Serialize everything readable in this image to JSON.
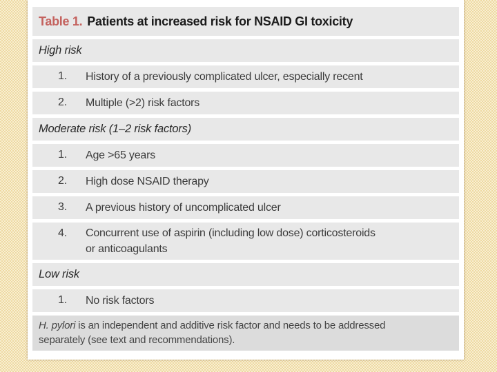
{
  "colors": {
    "background_tan_light": "#f8efd3",
    "background_tan_dark": "#eed9a1",
    "card_white": "#ffffff",
    "row_gray": "#e8e8e8",
    "footnote_gray": "#dcdcdc",
    "title_accent_red": "#c4625e",
    "body_text": "#3c3c3c"
  },
  "table": {
    "title": {
      "label": "Table 1.",
      "text": "Patients at increased risk for NSAID GI toxicity"
    },
    "sections": [
      {
        "header": "High risk",
        "items": [
          {
            "num": "1.",
            "text": "History of a previously complicated ulcer, especially recent"
          },
          {
            "num": "2.",
            "text": "Multiple (>2) risk factors"
          }
        ]
      },
      {
        "header": "Moderate risk (1–2 risk factors)",
        "items": [
          {
            "num": "1.",
            "text": "Age >65 years"
          },
          {
            "num": "2.",
            "text": "High dose NSAID therapy"
          },
          {
            "num": "3.",
            "text": "A previous history of uncomplicated ulcer"
          },
          {
            "num": "4.",
            "text": "Concurrent use of aspirin (including low dose) corticosteroids\nor anticoagulants"
          }
        ]
      },
      {
        "header": "Low risk",
        "items": [
          {
            "num": "1.",
            "text": "No risk factors"
          }
        ]
      }
    ],
    "footnote": {
      "italic": "H. pylori",
      "text": " is an independent and additive risk factor and needs to be addressed\nseparately (see text and recommendations)."
    }
  }
}
